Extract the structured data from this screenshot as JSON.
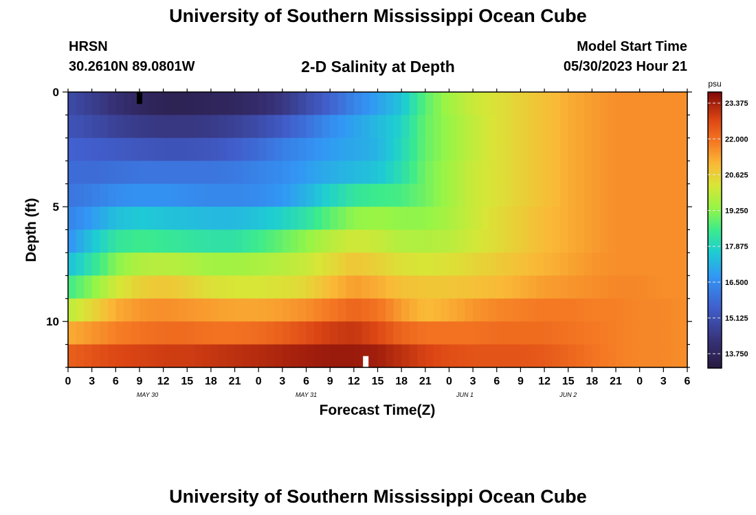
{
  "header": {
    "title": "University of Southern Mississippi Ocean Cube",
    "station": "HRSN",
    "coords": "30.2610N  89.0801W",
    "chart_title": "2-D Salinity at Depth",
    "start_label": "Model Start Time",
    "start_value": "05/30/2023 Hour 21"
  },
  "footer": {
    "title": "University of Southern Mississippi Ocean Cube"
  },
  "chart_data": {
    "type": "heatmap",
    "title": "2-D Salinity at Depth",
    "xlabel": "Forecast Time(Z)",
    "ylabel": "Depth (ft)",
    "x_tick_labels": [
      "0",
      "3",
      "6",
      "9",
      "12",
      "15",
      "18",
      "21",
      "0",
      "3",
      "6",
      "9",
      "12",
      "15",
      "18",
      "21",
      "0",
      "3",
      "6",
      "9",
      "12",
      "15",
      "18",
      "21",
      "0",
      "3",
      "6"
    ],
    "x_day_labels": [
      {
        "label": "MAY 30",
        "hours_from_start": 10
      },
      {
        "label": "MAY 31",
        "hours_from_start": 30
      },
      {
        "label": "JUN 1",
        "hours_from_start": 50
      },
      {
        "label": "JUN 2",
        "hours_from_start": 63
      }
    ],
    "x_range_hours": [
      0,
      78
    ],
    "y_ticks": [
      0,
      5,
      10
    ],
    "y_range_ft": [
      0,
      12
    ],
    "depth_levels_ft": [
      0.5,
      1.5,
      2.5,
      3.5,
      4.5,
      5.5,
      6.5,
      7.5,
      8.5,
      9.5,
      10.5,
      11.5
    ],
    "colorbar": {
      "unit": "psu",
      "ticks": [
        "23.375",
        "22.000",
        "20.625",
        "19.250",
        "17.875",
        "16.500",
        "15.125",
        "13.750"
      ],
      "range": [
        13.2,
        23.8
      ]
    },
    "time_knots_hours": [
      0,
      3,
      6,
      9,
      12,
      15,
      18,
      21,
      24,
      27,
      30,
      33,
      36,
      39,
      42,
      45,
      48,
      51,
      54,
      57,
      60,
      63,
      66,
      69,
      72,
      75,
      78
    ],
    "salinity_psu_by_depth": [
      [
        15.0,
        14.6,
        14.2,
        13.8,
        13.6,
        13.6,
        13.7,
        13.8,
        14.0,
        14.4,
        15.0,
        15.6,
        16.3,
        16.9,
        17.5,
        18.8,
        19.5,
        20.0,
        20.3,
        20.6,
        20.9,
        21.2,
        21.4,
        21.6,
        21.6,
        21.6,
        21.6
      ],
      [
        15.2,
        15.0,
        14.7,
        14.5,
        14.4,
        14.4,
        14.5,
        14.7,
        15.0,
        15.4,
        15.9,
        16.5,
        16.9,
        17.3,
        17.8,
        18.9,
        19.4,
        19.9,
        20.3,
        20.6,
        20.9,
        21.2,
        21.4,
        21.6,
        21.6,
        21.6,
        21.6
      ],
      [
        15.6,
        15.5,
        15.4,
        15.3,
        15.2,
        15.2,
        15.3,
        15.5,
        15.8,
        16.2,
        16.5,
        16.8,
        17.0,
        17.2,
        17.9,
        18.9,
        19.4,
        19.9,
        20.3,
        20.6,
        20.9,
        21.2,
        21.4,
        21.6,
        21.6,
        21.6,
        21.6
      ],
      [
        15.8,
        15.8,
        15.9,
        16.0,
        16.0,
        16.0,
        16.0,
        16.1,
        16.3,
        16.5,
        16.8,
        17.1,
        17.3,
        17.5,
        18.1,
        19.0,
        19.5,
        20.0,
        20.3,
        20.6,
        20.9,
        21.2,
        21.4,
        21.6,
        21.6,
        21.6,
        21.6
      ],
      [
        16.0,
        16.2,
        16.5,
        16.6,
        16.6,
        16.5,
        16.4,
        16.4,
        16.5,
        16.7,
        17.2,
        17.8,
        18.3,
        18.5,
        18.6,
        19.0,
        19.5,
        20.0,
        20.3,
        20.6,
        20.9,
        21.2,
        21.4,
        21.6,
        21.6,
        21.6,
        21.6
      ],
      [
        16.3,
        16.8,
        17.4,
        17.6,
        17.5,
        17.4,
        17.3,
        17.3,
        17.5,
        17.8,
        18.2,
        18.8,
        19.3,
        19.4,
        19.3,
        19.3,
        19.6,
        20.0,
        20.4,
        20.7,
        21.0,
        21.2,
        21.4,
        21.6,
        21.6,
        21.6,
        21.6
      ],
      [
        16.6,
        17.5,
        18.3,
        18.5,
        18.4,
        18.3,
        18.2,
        18.2,
        18.5,
        18.9,
        19.3,
        19.8,
        20.1,
        20.0,
        19.7,
        19.7,
        19.8,
        20.1,
        20.4,
        20.7,
        21.0,
        21.2,
        21.4,
        21.6,
        21.6,
        21.6,
        21.6
      ],
      [
        17.4,
        18.2,
        19.2,
        19.7,
        19.8,
        19.7,
        19.5,
        19.5,
        19.6,
        19.8,
        20.0,
        20.4,
        20.8,
        20.6,
        20.3,
        20.2,
        20.3,
        20.5,
        20.7,
        20.9,
        21.1,
        21.3,
        21.5,
        21.6,
        21.6,
        21.6,
        21.6
      ],
      [
        18.5,
        19.2,
        20.1,
        20.6,
        20.8,
        20.6,
        20.3,
        20.2,
        20.2,
        20.3,
        20.5,
        21.0,
        21.4,
        21.2,
        20.9,
        20.8,
        20.8,
        20.9,
        21.0,
        21.2,
        21.4,
        21.5,
        21.6,
        21.7,
        21.7,
        21.6,
        21.6
      ],
      [
        19.8,
        20.5,
        21.2,
        21.5,
        21.6,
        21.5,
        21.4,
        21.3,
        21.3,
        21.4,
        21.6,
        21.9,
        22.2,
        22.0,
        21.4,
        21.0,
        21.2,
        21.5,
        21.7,
        21.8,
        21.9,
        21.9,
        21.8,
        21.8,
        21.7,
        21.7,
        21.6
      ],
      [
        21.2,
        21.5,
        21.8,
        22.0,
        22.1,
        22.1,
        22.0,
        22.0,
        22.1,
        22.3,
        22.6,
        22.9,
        23.0,
        22.7,
        22.2,
        22.0,
        22.0,
        22.0,
        22.1,
        22.1,
        22.1,
        22.0,
        21.9,
        21.8,
        21.7,
        21.7,
        21.6
      ],
      [
        22.3,
        22.5,
        22.7,
        22.8,
        22.9,
        22.9,
        23.0,
        23.1,
        23.2,
        23.3,
        23.4,
        23.5,
        23.5,
        23.4,
        23.1,
        22.8,
        22.6,
        22.5,
        22.5,
        22.5,
        22.4,
        22.2,
        22.0,
        21.8,
        21.7,
        21.7,
        21.6
      ]
    ],
    "markers": [
      {
        "hours": 9,
        "depth_ft": 0.25,
        "color": "#000000"
      },
      {
        "hours": 37.5,
        "depth_ft": 11.75,
        "color": "#ffffff"
      }
    ]
  }
}
